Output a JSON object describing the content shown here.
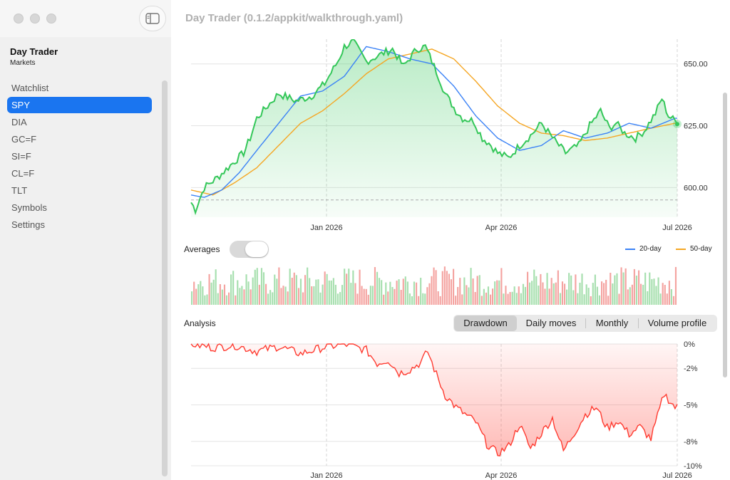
{
  "window": {
    "title": "Day Trader (0.1.2/appkit/walkthrough.yaml)"
  },
  "sidebar": {
    "app_title": "Day Trader",
    "app_subtitle": "Markets",
    "items": [
      {
        "label": "Watchlist",
        "selected": false
      },
      {
        "label": "SPY",
        "selected": true
      },
      {
        "label": "DIA",
        "selected": false
      },
      {
        "label": "GC=F",
        "selected": false
      },
      {
        "label": "SI=F",
        "selected": false
      },
      {
        "label": "CL=F",
        "selected": false
      },
      {
        "label": "TLT",
        "selected": false
      },
      {
        "label": "Symbols",
        "selected": false
      },
      {
        "label": "Settings",
        "selected": false
      }
    ]
  },
  "controls": {
    "averages_label": "Averages",
    "averages_on": false,
    "legend": [
      {
        "name": "20-day",
        "color": "#3b82f6"
      },
      {
        "name": "50-day",
        "color": "#f5a623"
      }
    ],
    "analysis_label": "Analysis",
    "segments": [
      {
        "label": "Drawdown",
        "active": true
      },
      {
        "label": "Daily moves",
        "active": false
      },
      {
        "label": "Monthly",
        "active": false
      },
      {
        "label": "Volume profile",
        "active": false
      }
    ]
  },
  "colors": {
    "accent": "#1a75f0",
    "up": "#34c759",
    "down": "#ff3b30",
    "ma20": "#3b82f6",
    "ma50": "#f5a623"
  },
  "chart_data": [
    {
      "type": "line",
      "series_name": "SPY",
      "x_ticks": [
        "Jan 2026",
        "Apr 2026",
        "Jul 2026"
      ],
      "y_ticks": [
        600,
        625,
        650
      ],
      "y_tick_labels": [
        "600.00",
        "625.00",
        "650.00"
      ],
      "ylim": [
        588,
        660
      ],
      "reference_line": 595,
      "close_keypoints": [
        [
          0,
          594
        ],
        [
          2,
          591
        ],
        [
          6,
          600
        ],
        [
          12,
          604
        ],
        [
          18,
          609
        ],
        [
          24,
          614
        ],
        [
          27,
          620
        ],
        [
          30,
          628
        ],
        [
          34,
          632
        ],
        [
          40,
          638
        ],
        [
          48,
          635
        ],
        [
          55,
          637
        ],
        [
          61,
          642
        ],
        [
          67,
          651
        ],
        [
          70,
          657
        ],
        [
          74,
          659
        ],
        [
          80,
          651
        ],
        [
          87,
          654
        ],
        [
          92,
          656
        ],
        [
          97,
          649
        ],
        [
          103,
          656
        ],
        [
          107,
          657
        ],
        [
          113,
          645
        ],
        [
          116,
          638
        ],
        [
          121,
          631
        ],
        [
          124,
          628
        ],
        [
          129,
          627
        ],
        [
          133,
          620
        ],
        [
          136,
          618
        ],
        [
          140,
          614
        ],
        [
          145,
          612
        ],
        [
          150,
          617
        ],
        [
          155,
          621
        ],
        [
          160,
          626
        ],
        [
          166,
          619
        ],
        [
          171,
          614
        ],
        [
          177,
          617
        ],
        [
          182,
          625
        ],
        [
          187,
          631
        ],
        [
          191,
          624
        ],
        [
          194,
          626
        ],
        [
          198,
          622
        ],
        [
          203,
          620
        ],
        [
          207,
          623
        ],
        [
          212,
          630
        ],
        [
          215,
          636
        ],
        [
          218,
          629
        ],
        [
          221,
          627
        ]
      ],
      "ma20_keypoints": [
        [
          0,
          597
        ],
        [
          6,
          596
        ],
        [
          14,
          599
        ],
        [
          22,
          606
        ],
        [
          30,
          615
        ],
        [
          40,
          626
        ],
        [
          50,
          637
        ],
        [
          60,
          639
        ],
        [
          70,
          645
        ],
        [
          80,
          657
        ],
        [
          90,
          655
        ],
        [
          100,
          652
        ],
        [
          110,
          650
        ],
        [
          120,
          641
        ],
        [
          130,
          629
        ],
        [
          140,
          620
        ],
        [
          150,
          615
        ],
        [
          160,
          617
        ],
        [
          170,
          623
        ],
        [
          180,
          620
        ],
        [
          190,
          622
        ],
        [
          200,
          626
        ],
        [
          210,
          624
        ],
        [
          221,
          628
        ]
      ],
      "ma50_keypoints": [
        [
          0,
          599
        ],
        [
          10,
          597
        ],
        [
          20,
          602
        ],
        [
          30,
          608
        ],
        [
          40,
          617
        ],
        [
          50,
          626
        ],
        [
          60,
          631
        ],
        [
          70,
          638
        ],
        [
          80,
          646
        ],
        [
          90,
          652
        ],
        [
          100,
          654
        ],
        [
          110,
          656
        ],
        [
          120,
          652
        ],
        [
          130,
          643
        ],
        [
          140,
          633
        ],
        [
          150,
          626
        ],
        [
          160,
          622
        ],
        [
          170,
          621
        ],
        [
          180,
          619
        ],
        [
          190,
          620
        ],
        [
          200,
          622
        ],
        [
          210,
          624
        ],
        [
          221,
          626
        ]
      ]
    },
    {
      "type": "bar",
      "series_name": "Volume",
      "bar_count": 223
    },
    {
      "type": "area",
      "series_name": "Drawdown",
      "x_ticks": [
        "Jan 2026",
        "Apr 2026",
        "Jul 2026"
      ],
      "y_ticks": [
        0,
        -2,
        -5,
        -8,
        -10
      ],
      "y_tick_labels": [
        "0%",
        "-2%",
        "-5%",
        "-8%",
        "-10%"
      ],
      "ylim": [
        -10,
        0
      ],
      "drawdown_keypoints": [
        [
          0,
          0
        ],
        [
          10,
          -0.3
        ],
        [
          20,
          -0.1
        ],
        [
          30,
          -0.6
        ],
        [
          40,
          -0.2
        ],
        [
          50,
          -0.8
        ],
        [
          60,
          -0.3
        ],
        [
          70,
          0
        ],
        [
          80,
          -0.5
        ],
        [
          85,
          -1.6
        ],
        [
          90,
          -1.3
        ],
        [
          95,
          -2.4
        ],
        [
          100,
          -2.1
        ],
        [
          105,
          -1.5
        ],
        [
          108,
          -0.6
        ],
        [
          112,
          -2.5
        ],
        [
          116,
          -4.2
        ],
        [
          121,
          -5.2
        ],
        [
          126,
          -5.9
        ],
        [
          130,
          -6.4
        ],
        [
          135,
          -8.2
        ],
        [
          140,
          -9.0
        ],
        [
          145,
          -8.4
        ],
        [
          150,
          -6.6
        ],
        [
          155,
          -8.6
        ],
        [
          160,
          -7.3
        ],
        [
          165,
          -6.1
        ],
        [
          170,
          -8.8
        ],
        [
          175,
          -7.3
        ],
        [
          180,
          -5.8
        ],
        [
          185,
          -5.2
        ],
        [
          190,
          -6.9
        ],
        [
          195,
          -6.3
        ],
        [
          200,
          -7.4
        ],
        [
          205,
          -6.8
        ],
        [
          210,
          -7.8
        ],
        [
          216,
          -4.1
        ],
        [
          221,
          -5.2
        ]
      ]
    }
  ]
}
